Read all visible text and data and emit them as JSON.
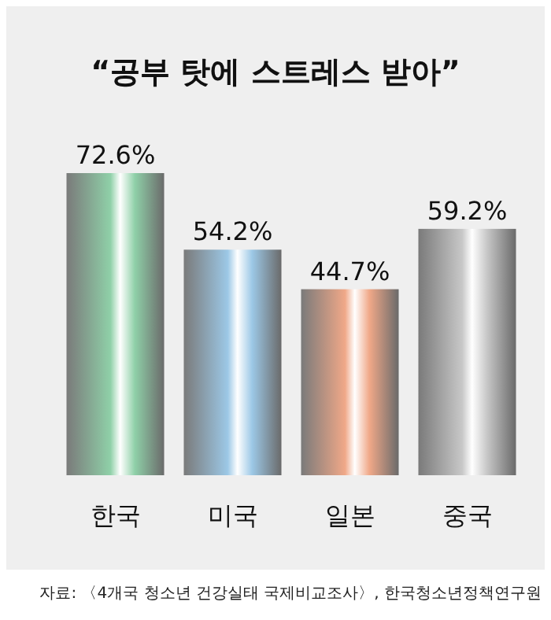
{
  "chart_data": {
    "type": "bar",
    "title": "“공부 탓에 스트레스 받아”",
    "categories": [
      "한국",
      "미국",
      "일본",
      "중국"
    ],
    "values": [
      72.6,
      54.2,
      44.7,
      59.2
    ],
    "colors": [
      "#8fd0a8",
      "#9cc8e6",
      "#f0a888",
      "#c8c8c8"
    ],
    "value_labels": [
      "72.6%",
      "54.2%",
      "44.7%",
      "59.2%"
    ],
    "annotations": [
      "자료: 〈4개국 청소년 건강실태 국제비교조사〉, 한국청소년정책연구원"
    ]
  }
}
